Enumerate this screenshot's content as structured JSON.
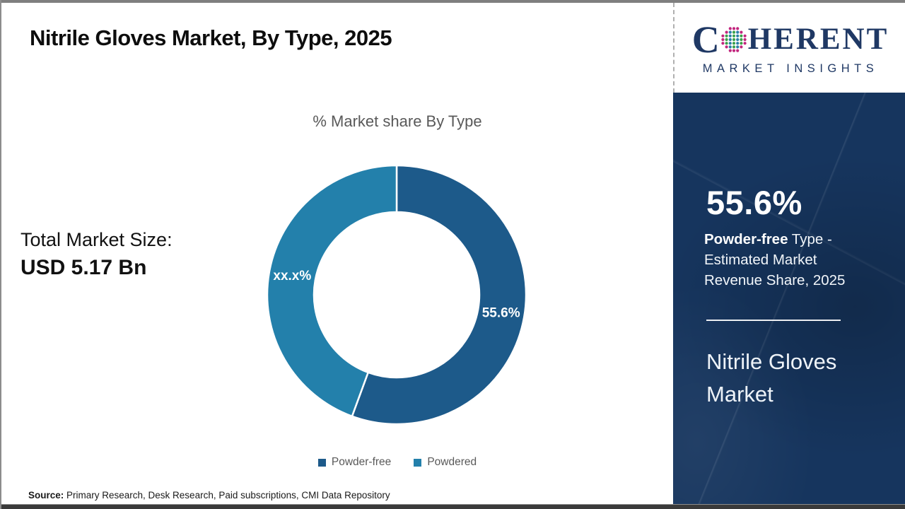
{
  "header": {
    "title": "Nitrile Gloves Market, By Type, 2025"
  },
  "logo": {
    "word_prefix": "C",
    "word_suffix": "HERENT",
    "subtitle": "MARKET INSIGHTS"
  },
  "left_panel": {
    "total_label": "Total Market Size:",
    "total_value": "USD 5.17 Bn"
  },
  "chart_data": {
    "type": "pie",
    "donut": true,
    "title": "% Market share By Type",
    "start_angle_deg": 0,
    "legend_position": "bottom",
    "series": [
      {
        "name": "Powder-free",
        "value": 55.6,
        "display": "55.6%",
        "color": "#1d5a8a"
      },
      {
        "name": "Powdered",
        "value": 44.4,
        "display": "xx.x%",
        "color": "#2380ab"
      }
    ]
  },
  "sidebar": {
    "stat_value": "55.6%",
    "desc_bold": " Powder-free",
    "desc_rest": " Type -",
    "desc_line2": "Estimated Market",
    "desc_line3": "Revenue Share, 2025",
    "market_line1": "Nitrile Gloves",
    "market_line2": "Market"
  },
  "footer": {
    "source_label": "Source:",
    "source_text": " Primary Research, Desk Research, Paid subscriptions, CMI Data Repository"
  },
  "colors": {
    "powder_free_slice": "#1d5a8a",
    "powdered_slice": "#2380ab",
    "sidebar_bg": "#16355e",
    "logo_navy": "#1f3864",
    "muted_text": "#595959",
    "globe_green": "#3ba24b",
    "globe_teal": "#2a7fa8",
    "globe_magenta": "#c2267e"
  }
}
